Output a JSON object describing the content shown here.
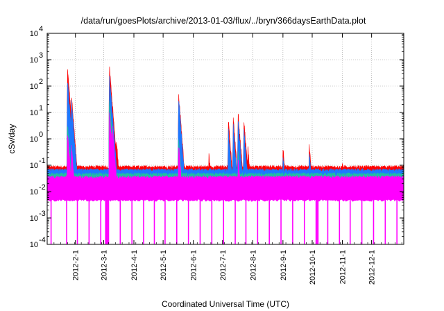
{
  "chart_data": {
    "type": "area",
    "title": "/data/run/goesPlots/archive/2013-01-03/flux/../bryn/366daysEarthData.plot",
    "xlabel": "Coordinated Universal Time (UTC)",
    "ylabel": "cSv/day",
    "y_scale": "log",
    "ylim": [
      0.0001,
      10000
    ],
    "xlim": [
      "2012-01-03",
      "2013-01-03"
    ],
    "grid": true,
    "y_ticks": [
      {
        "exp": -4,
        "base": "10",
        "label": "-4"
      },
      {
        "exp": -3,
        "base": "10",
        "label": "-3"
      },
      {
        "exp": -2,
        "base": "10",
        "label": "-2"
      },
      {
        "exp": -1,
        "base": "10",
        "label": "-1"
      },
      {
        "exp": 0,
        "base": "10",
        "label": "0"
      },
      {
        "exp": 1,
        "base": "10",
        "label": "1"
      },
      {
        "exp": 2,
        "base": "10",
        "label": "2"
      },
      {
        "exp": 3,
        "base": "10",
        "label": "3"
      },
      {
        "exp": 4,
        "base": "10",
        "label": "4"
      }
    ],
    "x_ticks": [
      "2012-2-1",
      "2012-3-1",
      "2012-4-1",
      "2012-5-1",
      "2012-6-1",
      "2012-7-1",
      "2012-8-1",
      "2012-9-1",
      "2012-10-1",
      "2012-11-1",
      "2012-12-1"
    ],
    "colors": {
      "red": "#ff0000",
      "blue": "#1e78ff",
      "teal": "#20c0a0",
      "magenta": "#ff00ff"
    },
    "series_layers": [
      {
        "color": "red",
        "baseline": 0.085,
        "peaks": [
          {
            "date": "2012-01-24",
            "value": 400
          },
          {
            "date": "2012-01-28",
            "value": 40
          },
          {
            "date": "2012-03-07",
            "value": 500
          },
          {
            "date": "2012-03-10",
            "value": 12
          },
          {
            "date": "2012-03-14",
            "value": 1.0
          },
          {
            "date": "2012-05-17",
            "value": 45
          },
          {
            "date": "2012-06-17",
            "value": 0.3
          },
          {
            "date": "2012-07-07",
            "value": 5
          },
          {
            "date": "2012-07-12",
            "value": 6
          },
          {
            "date": "2012-07-17",
            "value": 9
          },
          {
            "date": "2012-07-23",
            "value": 5
          },
          {
            "date": "2012-07-27",
            "value": 0.5
          },
          {
            "date": "2012-09-01",
            "value": 0.5
          },
          {
            "date": "2012-09-28",
            "value": 0.6
          },
          {
            "date": "2012-11-01",
            "value": 0.12
          }
        ]
      },
      {
        "color": "blue",
        "baseline": 0.065,
        "peaks": [
          {
            "date": "2012-01-24",
            "value": 130
          },
          {
            "date": "2012-01-28",
            "value": 25
          },
          {
            "date": "2012-03-07",
            "value": 200
          },
          {
            "date": "2012-03-10",
            "value": 8
          },
          {
            "date": "2012-05-17",
            "value": 30
          },
          {
            "date": "2012-07-07",
            "value": 2
          },
          {
            "date": "2012-07-12",
            "value": 3
          },
          {
            "date": "2012-07-17",
            "value": 5
          },
          {
            "date": "2012-07-23",
            "value": 2
          },
          {
            "date": "2012-09-01",
            "value": 0.25
          },
          {
            "date": "2012-09-28",
            "value": 0.3
          }
        ]
      },
      {
        "color": "teal",
        "baseline": 0.045,
        "peaks": [
          {
            "date": "2012-01-24",
            "value": 3
          },
          {
            "date": "2012-01-28",
            "value": 0.5
          },
          {
            "date": "2012-03-07",
            "value": 30
          },
          {
            "date": "2012-03-10",
            "value": 2
          },
          {
            "date": "2012-05-17",
            "value": 1.0
          },
          {
            "date": "2012-07-17",
            "value": 0.3
          }
        ]
      },
      {
        "color": "magenta",
        "baseline": 0.035,
        "floor": 0.005,
        "peaks": [
          {
            "date": "2012-01-24",
            "value": 1.5
          },
          {
            "date": "2012-01-28",
            "value": 0.5
          },
          {
            "date": "2012-03-07",
            "value": 10
          },
          {
            "date": "2012-03-10",
            "value": 3
          },
          {
            "date": "2012-05-17",
            "value": 0.6
          },
          {
            "date": "2012-07-17",
            "value": 0.2
          }
        ]
      }
    ],
    "dropout_dates": [
      "2012-01-07",
      "2012-01-23",
      "2012-02-03",
      "2012-02-15",
      "2012-02-27",
      "2012-03-03",
      "2012-03-04",
      "2012-03-05",
      "2012-03-06",
      "2012-03-18",
      "2012-03-30",
      "2012-04-11",
      "2012-04-22",
      "2012-05-03",
      "2012-05-15",
      "2012-05-27",
      "2012-06-08",
      "2012-06-20",
      "2012-07-02",
      "2012-07-14",
      "2012-07-25",
      "2012-08-06",
      "2012-08-18",
      "2012-08-30",
      "2012-09-11",
      "2012-09-23",
      "2012-10-05",
      "2012-10-06",
      "2012-10-07",
      "2012-10-17",
      "2012-10-29",
      "2012-11-09",
      "2012-11-21",
      "2012-12-03",
      "2012-12-15",
      "2012-12-27"
    ]
  }
}
